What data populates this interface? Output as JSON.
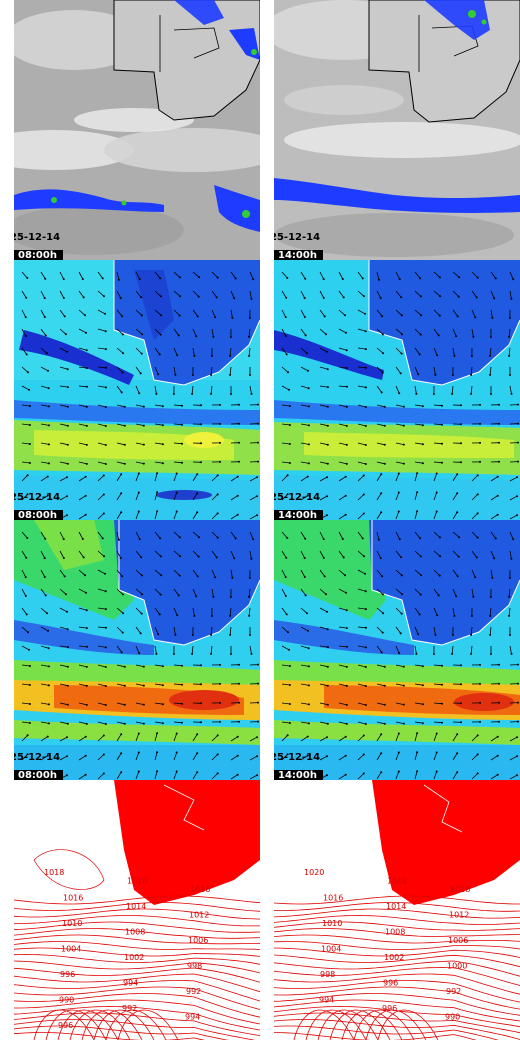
{
  "panels": [
    {
      "row": 0,
      "col": 0,
      "product": "satellite-cloud",
      "date": "25-12-14",
      "time": "08:00h"
    },
    {
      "row": 0,
      "col": 1,
      "product": "satellite-cloud",
      "date": "25-12-14",
      "time": "14:00h"
    },
    {
      "row": 1,
      "col": 0,
      "product": "wind-field",
      "date": "25-12-14",
      "time": "08:00h"
    },
    {
      "row": 1,
      "col": 1,
      "product": "wind-field",
      "date": "25-12-14",
      "time": "14:00h"
    },
    {
      "row": 2,
      "col": 0,
      "product": "wind-field-upper",
      "date": "25-12-14",
      "time": "08:00h"
    },
    {
      "row": 2,
      "col": 1,
      "product": "wind-field-upper",
      "date": "25-12-14",
      "time": "14:00h"
    },
    {
      "row": 3,
      "col": 0,
      "product": "pressure-isobars",
      "date": "",
      "time": ""
    },
    {
      "row": 3,
      "col": 1,
      "product": "pressure-isobars",
      "date": "",
      "time": ""
    }
  ],
  "isobar_labels_left": [
    "1018",
    "1020",
    "1016",
    "1016",
    "1014",
    "1012",
    "1010",
    "1008",
    "1006",
    "1004",
    "1002",
    "998",
    "996",
    "994",
    "992",
    "990",
    "992",
    "994",
    "996"
  ],
  "isobar_labels_right": [
    "1020",
    "1018",
    "1018",
    "1016",
    "1014",
    "1012",
    "1010",
    "1008",
    "1006",
    "1004",
    "1002",
    "1000",
    "998",
    "996",
    "992",
    "994",
    "996",
    "990"
  ],
  "colors": {
    "cloud_bg": "#a9a9a9",
    "precip_blue": "#1e3cff",
    "precip_green": "#33cc33",
    "coast": "#000000",
    "isobar": "#e00000",
    "land_isobar_fill": "#ff0000"
  }
}
